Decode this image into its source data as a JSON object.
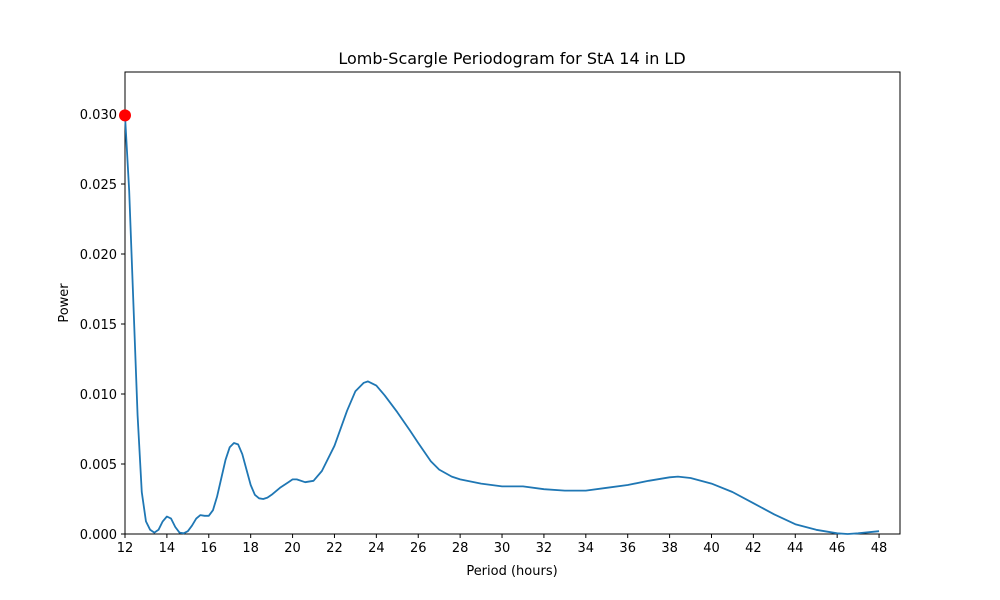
{
  "chart_data": {
    "type": "line",
    "title": "Lomb-Scargle Periodogram for StA 14 in LD",
    "xlabel": "Period (hours)",
    "ylabel": "Power",
    "xlim": [
      12,
      49
    ],
    "ylim": [
      0,
      0.033
    ],
    "xticks": [
      12,
      14,
      16,
      18,
      20,
      22,
      24,
      26,
      28,
      30,
      32,
      34,
      36,
      38,
      40,
      42,
      44,
      46,
      48
    ],
    "yticks": [
      0.0,
      0.005,
      0.01,
      0.015,
      0.02,
      0.025,
      0.03
    ],
    "ytick_labels": [
      "0.000",
      "0.005",
      "0.010",
      "0.015",
      "0.020",
      "0.025",
      "0.030"
    ],
    "grid": false,
    "series": [
      {
        "color": "#1f77b4",
        "x": [
          12.0,
          12.2,
          12.4,
          12.6,
          12.8,
          13.0,
          13.2,
          13.4,
          13.6,
          13.8,
          14.0,
          14.2,
          14.4,
          14.6,
          14.8,
          15.0,
          15.2,
          15.4,
          15.6,
          15.8,
          16.0,
          16.2,
          16.4,
          16.6,
          16.8,
          17.0,
          17.2,
          17.4,
          17.6,
          17.8,
          18.0,
          18.2,
          18.4,
          18.6,
          18.8,
          19.0,
          19.4,
          19.8,
          20.0,
          20.2,
          20.6,
          21.0,
          21.4,
          22.0,
          22.6,
          23.0,
          23.4,
          23.6,
          24.0,
          24.4,
          25.0,
          25.6,
          26.0,
          26.6,
          27.0,
          27.6,
          28.0,
          29.0,
          30.0,
          31.0,
          32.0,
          33.0,
          34.0,
          35.0,
          36.0,
          37.0,
          38.0,
          38.4,
          39.0,
          40.0,
          41.0,
          42.0,
          43.0,
          44.0,
          45.0,
          46.0,
          46.5,
          47.0,
          48.0
        ],
        "y": [
          0.0299,
          0.0245,
          0.0165,
          0.0085,
          0.003,
          0.0009,
          0.0003,
          0.0001,
          0.0003,
          0.0009,
          0.00125,
          0.0011,
          0.0005,
          0.0001,
          5e-05,
          0.0002,
          0.0006,
          0.0011,
          0.00135,
          0.0013,
          0.0013,
          0.0017,
          0.0027,
          0.004,
          0.0053,
          0.0062,
          0.0065,
          0.0064,
          0.0057,
          0.0046,
          0.0035,
          0.0028,
          0.00255,
          0.0025,
          0.0026,
          0.0028,
          0.0033,
          0.0037,
          0.0039,
          0.0039,
          0.0037,
          0.0038,
          0.0045,
          0.0063,
          0.0088,
          0.0102,
          0.0108,
          0.0109,
          0.0106,
          0.0099,
          0.0087,
          0.0074,
          0.0065,
          0.0052,
          0.0046,
          0.0041,
          0.0039,
          0.0036,
          0.0034,
          0.0034,
          0.0032,
          0.0031,
          0.0031,
          0.0033,
          0.0035,
          0.0038,
          0.00405,
          0.0041,
          0.004,
          0.0036,
          0.003,
          0.0022,
          0.0014,
          0.0007,
          0.0003,
          5e-05,
          0.0,
          5e-05,
          0.0002
        ]
      }
    ],
    "marker": {
      "x": 12.0,
      "y": 0.0299,
      "color": "#ff0000"
    }
  }
}
